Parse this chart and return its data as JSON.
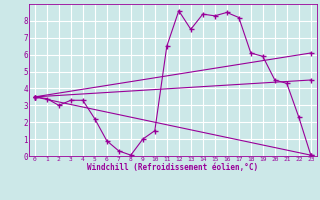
{
  "background_color": "#cce8e8",
  "grid_color": "#ffffff",
  "line_color": "#990099",
  "marker_color": "#990099",
  "xlabel": "Windchill (Refroidissement éolien,°C)",
  "xlim": [
    -0.5,
    23.5
  ],
  "ylim": [
    0,
    9
  ],
  "xticks": [
    0,
    1,
    2,
    3,
    4,
    5,
    6,
    7,
    8,
    9,
    10,
    11,
    12,
    13,
    14,
    15,
    16,
    17,
    18,
    19,
    20,
    21,
    22,
    23
  ],
  "yticks": [
    0,
    1,
    2,
    3,
    4,
    5,
    6,
    7,
    8
  ],
  "series1_x": [
    0,
    1,
    2,
    3,
    4,
    5,
    6,
    7,
    8,
    9,
    10,
    11,
    12,
    13,
    14,
    15,
    16,
    17,
    18,
    19,
    20,
    21,
    22,
    23
  ],
  "series1_y": [
    3.5,
    3.4,
    3.0,
    3.3,
    3.3,
    2.2,
    0.9,
    0.3,
    0.05,
    1.0,
    1.5,
    6.5,
    8.6,
    7.5,
    8.4,
    8.3,
    8.5,
    8.2,
    6.1,
    5.9,
    4.5,
    4.3,
    2.3,
    0.05
  ],
  "series2_x": [
    0,
    23
  ],
  "series2_y": [
    3.5,
    4.5
  ],
  "series3_x": [
    0,
    23
  ],
  "series3_y": [
    3.5,
    0.05
  ],
  "series4_x": [
    0,
    23
  ],
  "series4_y": [
    3.5,
    6.1
  ]
}
